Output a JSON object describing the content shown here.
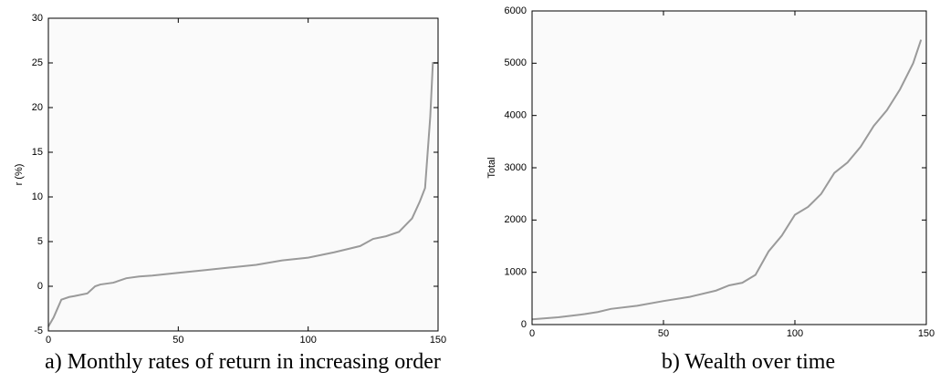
{
  "chart_data": [
    {
      "type": "line",
      "title": "a) Monthly rates of return in increasing order",
      "y_label": "r (%)",
      "color": "#9a9a9a",
      "x": [
        0,
        2,
        5,
        8,
        10,
        15,
        18,
        20,
        25,
        30,
        35,
        40,
        50,
        60,
        70,
        80,
        90,
        100,
        110,
        120,
        125,
        130,
        135,
        140,
        143,
        145,
        146,
        147,
        148,
        150
      ],
      "values": [
        -4.5,
        -3.5,
        -1.5,
        -1.2,
        -1.1,
        -0.8,
        0.0,
        0.2,
        0.4,
        0.9,
        1.1,
        1.2,
        1.5,
        1.8,
        2.1,
        2.4,
        2.9,
        3.2,
        3.8,
        4.5,
        5.3,
        5.6,
        6.1,
        7.6,
        9.5,
        11,
        15,
        19,
        25,
        25
      ],
      "xlim": [
        0,
        150
      ],
      "xticks": [
        0,
        50,
        100,
        150
      ],
      "ylim": [
        -5,
        30
      ],
      "yticks": [
        -5,
        0,
        5,
        10,
        15,
        20,
        25,
        30
      ]
    },
    {
      "type": "line",
      "title": "b) Wealth over time",
      "y_label": "Total",
      "color": "#9a9a9a",
      "x": [
        0,
        10,
        20,
        25,
        30,
        40,
        50,
        60,
        70,
        75,
        80,
        85,
        90,
        95,
        100,
        105,
        110,
        115,
        120,
        125,
        130,
        135,
        140,
        145,
        148
      ],
      "values": [
        100,
        140,
        200,
        240,
        300,
        360,
        450,
        530,
        650,
        750,
        800,
        950,
        1400,
        1700,
        2100,
        2250,
        2500,
        2900,
        3100,
        3400,
        3800,
        4100,
        4500,
        5000,
        5450
      ],
      "xlim": [
        0,
        150
      ],
      "xticks": [
        0,
        50,
        100,
        150
      ],
      "ylim": [
        0,
        6000
      ],
      "yticks": [
        0,
        1000,
        2000,
        3000,
        4000,
        5000,
        6000
      ]
    }
  ]
}
